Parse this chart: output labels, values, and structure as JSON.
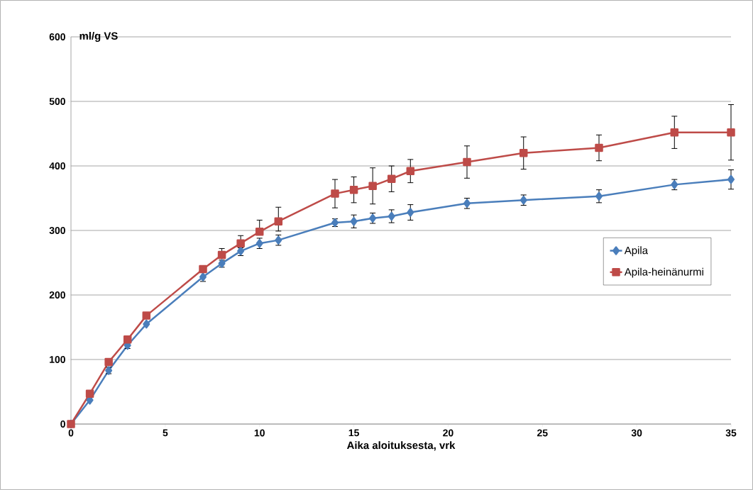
{
  "chart_data": {
    "type": "line",
    "xlabel": "Aika aloituksesta, vrk",
    "ylabel": "ml/g VS",
    "x": [
      0,
      1,
      2,
      3,
      4,
      7,
      8,
      9,
      10,
      11,
      14,
      15,
      16,
      17,
      18,
      21,
      24,
      28,
      32,
      35
    ],
    "series": [
      {
        "name": "Apila",
        "color": "#4a7ebb",
        "marker": "diamond",
        "values": [
          0,
          37,
          83,
          122,
          155,
          228,
          249,
          268,
          280,
          285,
          312,
          314,
          319,
          322,
          328,
          342,
          347,
          353,
          371,
          379
        ],
        "errors": [
          null,
          null,
          5,
          5,
          null,
          [
            221,
            235
          ],
          [
            243,
            254
          ],
          [
            261,
            273
          ],
          [
            272,
            288
          ],
          [
            277,
            293
          ],
          6,
          10,
          8,
          10,
          12,
          8,
          8,
          10,
          8,
          15
        ]
      },
      {
        "name": "Apila-heinänurmi",
        "color": "#be4b48",
        "marker": "square",
        "values": [
          0,
          47,
          96,
          131,
          168,
          240,
          262,
          280,
          298,
          314,
          357,
          363,
          369,
          380,
          392,
          406,
          420,
          428,
          452,
          452
        ],
        "errors": [
          null,
          null,
          null,
          null,
          null,
          null,
          [
            260,
            272
          ],
          [
            279,
            292
          ],
          [
            294,
            316
          ],
          [
            299,
            336
          ],
          22,
          20,
          28,
          20,
          18,
          25,
          25,
          20,
          25,
          43
        ]
      }
    ],
    "xlim": [
      0,
      35
    ],
    "xticks": [
      0,
      5,
      10,
      15,
      20,
      25,
      30,
      35
    ],
    "ylim": [
      0,
      600
    ],
    "yticks": [
      0,
      100,
      200,
      300,
      400,
      500,
      600
    ],
    "grid": "y",
    "legend": "right",
    "line_style": "solid"
  }
}
